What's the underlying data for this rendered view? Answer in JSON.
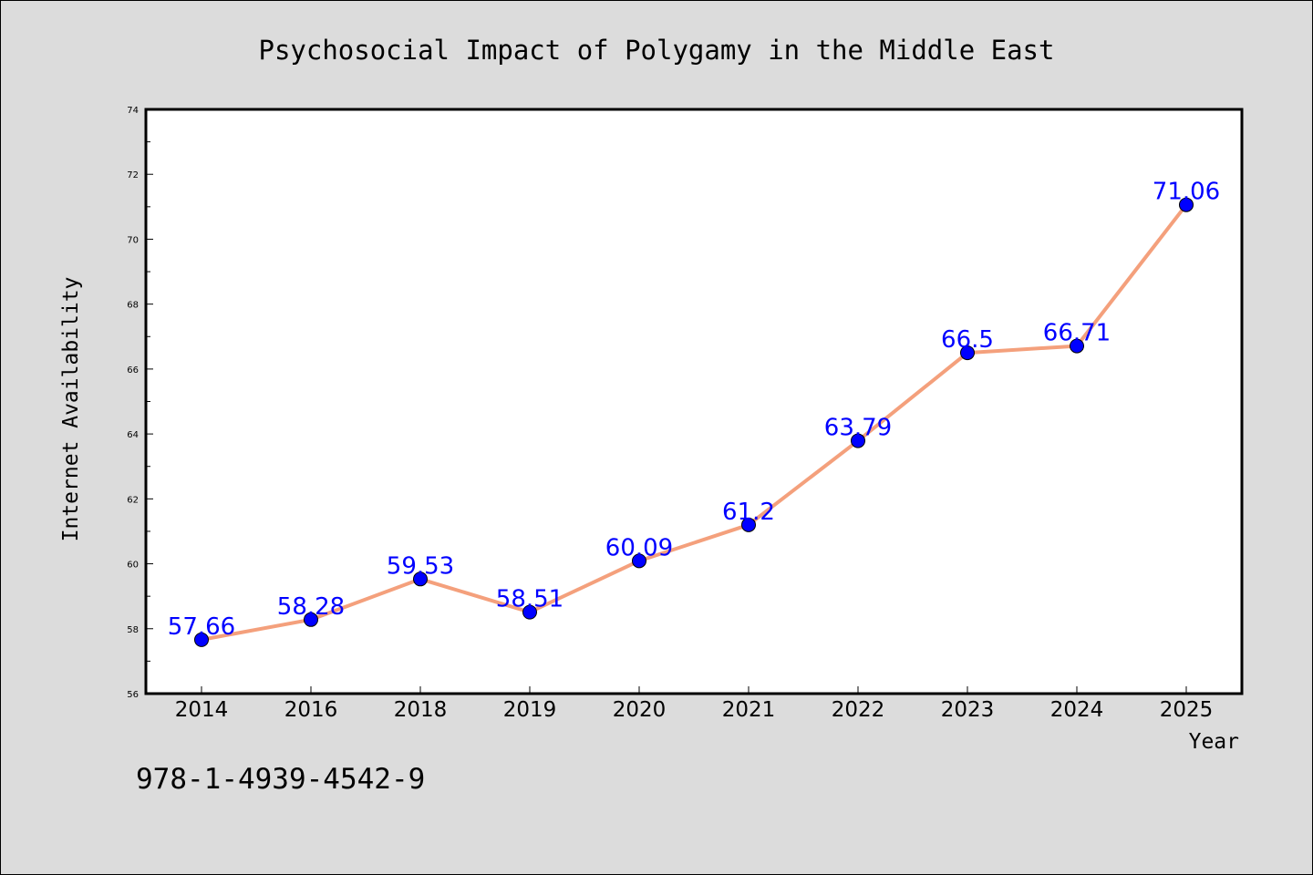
{
  "chart_data": {
    "type": "line",
    "title": "Psychosocial Impact of Polygamy in the Middle East",
    "xlabel": "Year",
    "ylabel": "Internet Availability",
    "categories": [
      "2014",
      "2016",
      "2018",
      "2019",
      "2020",
      "2021",
      "2022",
      "2023",
      "2024",
      "2025"
    ],
    "series": [
      {
        "values": [
          57.66,
          58.28,
          59.53,
          58.51,
          60.09,
          61.2,
          63.79,
          66.5,
          66.71,
          71.06
        ],
        "data_labels": [
          "57.66",
          "58.28",
          "59.53",
          "58.51",
          "60.09",
          "61.2",
          "63.79",
          "66.5",
          "66.71",
          "71.06"
        ]
      }
    ],
    "ylim": [
      56,
      74
    ],
    "yticks": [
      56,
      58,
      60,
      62,
      64,
      66,
      68,
      70,
      72,
      74
    ],
    "grid": false,
    "legend": "none",
    "colors": {
      "line": "#f4a07c",
      "marker": "#0000ff",
      "data_label": "#0000ff",
      "background": "#dcdcdc",
      "plot_background": "#ffffff"
    }
  },
  "footer": {
    "isbn": "978-1-4939-4542-9"
  }
}
